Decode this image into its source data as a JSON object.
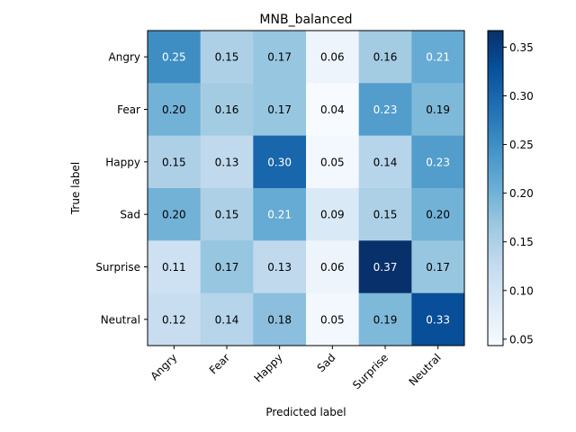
{
  "chart_data": {
    "type": "heatmap",
    "title": "MNB_balanced",
    "xlabel": "Predicted label",
    "ylabel": "True label",
    "x_categories": [
      "Angry",
      "Fear",
      "Happy",
      "Sad",
      "Surprise",
      "Neutral"
    ],
    "y_categories": [
      "Angry",
      "Fear",
      "Happy",
      "Sad",
      "Surprise",
      "Neutral"
    ],
    "values": [
      [
        0.25,
        0.15,
        0.17,
        0.06,
        0.16,
        0.21
      ],
      [
        0.2,
        0.16,
        0.17,
        0.04,
        0.23,
        0.19
      ],
      [
        0.15,
        0.13,
        0.3,
        0.05,
        0.14,
        0.23
      ],
      [
        0.2,
        0.15,
        0.21,
        0.09,
        0.15,
        0.2
      ],
      [
        0.11,
        0.17,
        0.13,
        0.06,
        0.37,
        0.17
      ],
      [
        0.12,
        0.14,
        0.18,
        0.05,
        0.19,
        0.33
      ]
    ],
    "value_format": "0.00",
    "colormap": "Blues",
    "colorbar": {
      "range": [
        0.0434,
        0.367
      ],
      "ticks": [
        0.05,
        0.1,
        0.15,
        0.2,
        0.25,
        0.3,
        0.35
      ],
      "tick_labels": [
        "0.05",
        "0.10",
        "0.15",
        "0.20",
        "0.25",
        "0.30",
        "0.35"
      ]
    },
    "x_tick_rotation": 45,
    "grid": false
  }
}
